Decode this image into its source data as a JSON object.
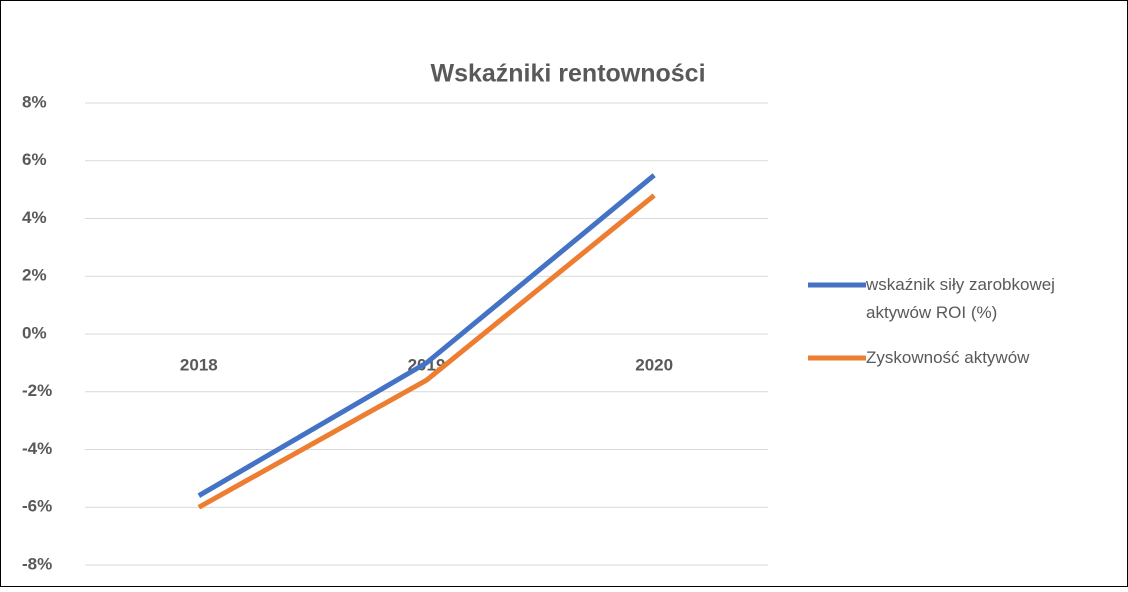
{
  "chart_data": {
    "type": "line",
    "title": "Wskaźniki rentowności",
    "categories": [
      "2018",
      "2019",
      "2020"
    ],
    "series": [
      {
        "name": "wskaźnik siły zarobkowej aktywów ROI (%)",
        "color": "#4472c4",
        "values": [
          -5.6,
          -1.0,
          5.5
        ]
      },
      {
        "name": "Zyskowność aktywów",
        "color": "#ed7d31",
        "values": [
          -6.0,
          -1.6,
          4.8
        ]
      }
    ],
    "ylim": [
      -8,
      8
    ],
    "yticks": [
      {
        "value": -8,
        "label": "-8%"
      },
      {
        "value": -6,
        "label": "-6%"
      },
      {
        "value": -4,
        "label": "-4%"
      },
      {
        "value": -2,
        "label": "-2%"
      },
      {
        "value": 0,
        "label": "0%"
      },
      {
        "value": 2,
        "label": "2%"
      },
      {
        "value": 4,
        "label": "4%"
      },
      {
        "value": 6,
        "label": "6%"
      },
      {
        "value": 8,
        "label": "8%"
      }
    ],
    "grid": true,
    "legend": "right"
  }
}
